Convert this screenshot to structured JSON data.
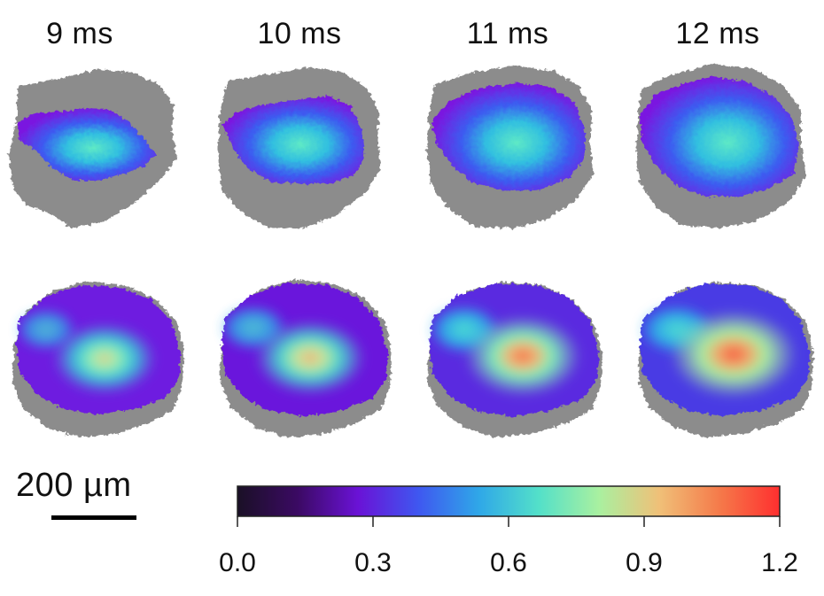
{
  "time_labels": [
    "9 ms",
    "10 ms",
    "11 ms",
    "12 ms"
  ],
  "scale_bar": {
    "label": "200 µm"
  },
  "colorbar": {
    "colormap": "rainbow",
    "min": 0.0,
    "max": 1.2,
    "ticks": [
      "0.0",
      "0.3",
      "0.6",
      "0.9",
      "1.2"
    ],
    "tick_values": [
      0.0,
      0.3,
      0.6,
      0.9,
      1.2
    ],
    "stops": [
      "#1a1026",
      "#3b0a63",
      "#6a12d6",
      "#3f57f0",
      "#2fa7e8",
      "#53e0c9",
      "#a9f0a0",
      "#f0c078",
      "#f57a4a",
      "#ff2f2f"
    ]
  },
  "panels": {
    "rows": 2,
    "columns": 4,
    "row_peak_values": [
      [
        0.65,
        0.65,
        0.68,
        0.7
      ],
      [
        0.95,
        0.98,
        1.05,
        1.1
      ]
    ]
  },
  "colors": {
    "mask_gray": "#8c8c8c",
    "background": "#ffffff"
  }
}
